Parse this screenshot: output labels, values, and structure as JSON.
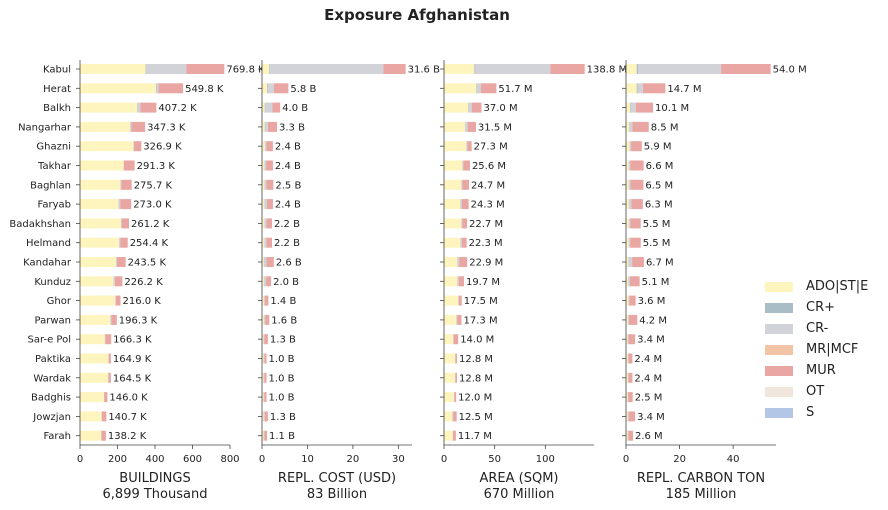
{
  "title": "Exposure Afghanistan",
  "legend": [
    {
      "label": "ADO|ST|E",
      "color": "#fdf5bd"
    },
    {
      "label": "CR+",
      "color": "#a9bdc6"
    },
    {
      "label": "CR-",
      "color": "#d1d3d8"
    },
    {
      "label": "MR|MCF",
      "color": "#f2c3a5"
    },
    {
      "label": "MUR",
      "color": "#e9a6a2"
    },
    {
      "label": "OT",
      "color": "#f1e6db"
    },
    {
      "label": "S",
      "color": "#b3c6e6"
    }
  ],
  "chart_data": {
    "type": "bar",
    "orientation": "horizontal",
    "stacked": true,
    "categories": [
      "Kabul",
      "Herat",
      "Balkh",
      "Nangarhar",
      "Ghazni",
      "Takhar",
      "Baghlan",
      "Faryab",
      "Badakhshan",
      "Helmand",
      "Kandahar",
      "Kunduz",
      "Ghor",
      "Parwan",
      "Sar-e Pol",
      "Paktika",
      "Wardak",
      "Badghis",
      "Jowzjan",
      "Farah"
    ],
    "panels": [
      {
        "xlabel": "BUILDINGS",
        "subtitle": "6,899 Thousand",
        "xlim": [
          0,
          800
        ],
        "xticks": [
          0,
          200,
          400,
          600,
          800
        ],
        "series": [
          {
            "name": "ADO|ST|E",
            "values": [
              350,
              405,
              305,
              268,
              285,
              232,
              215,
              205,
              218,
              208,
              192,
              178,
              188,
              162,
              132,
              152,
              150,
              128,
              115,
              112
            ]
          },
          {
            "name": "CR+",
            "values": [
              2,
              2,
              2,
              1,
              0,
              0,
              0,
              0,
              0,
              0,
              0,
              0,
              0,
              0,
              0,
              0,
              0,
              0,
              0,
              0
            ]
          },
          {
            "name": "CR-",
            "values": [
              215,
              12,
              15,
              5,
              3,
              3,
              5,
              10,
              4,
              8,
              5,
              8,
              3,
              5,
              3,
              2,
              2,
              2,
              2,
              3
            ]
          },
          {
            "name": "MR|MCF",
            "values": [
              0,
              0,
              0,
              0,
              0,
              0,
              0,
              0,
              0,
              0,
              0,
              0,
              0,
              0,
              0,
              0,
              0,
              0,
              0,
              0
            ]
          },
          {
            "name": "MUR",
            "values": [
              202.8,
              130.8,
              85.2,
              73.3,
              38.9,
              56.3,
              55.7,
              58.0,
              39.2,
              38.4,
              46.5,
              40.2,
              25.0,
              29.3,
              31.3,
              10.9,
              12.5,
              16.0,
              23.7,
              23.2
            ]
          }
        ],
        "labels": [
          "769.8 K",
          "549.8 K",
          "407.2 K",
          "347.3 K",
          "326.9 K",
          "291.3 K",
          "275.7 K",
          "273.0 K",
          "261.2 K",
          "254.4 K",
          "243.5 K",
          "226.2 K",
          "216.0 K",
          "196.3 K",
          "166.3 K",
          "164.9 K",
          "164.5 K",
          "146.0 K",
          "140.7 K",
          "138.2 K"
        ],
        "totals": [
          769.8,
          549.8,
          407.2,
          347.3,
          326.9,
          291.3,
          275.7,
          273.0,
          261.2,
          254.4,
          243.5,
          226.2,
          216.0,
          196.3,
          166.3,
          164.9,
          164.5,
          146.0,
          140.7,
          138.2
        ]
      },
      {
        "xlabel": "REPL. COST (USD)",
        "subtitle": "83 Billion",
        "xlim": [
          0,
          33
        ],
        "xticks": [
          0,
          10,
          20,
          30
        ],
        "series": [
          {
            "name": "ADO|ST|E",
            "values": [
              1.6,
              1.1,
              0.6,
              0.6,
              0.6,
              0.5,
              0.5,
              0.5,
              0.5,
              0.5,
              0.4,
              0.4,
              0.4,
              0.4,
              0.3,
              0.3,
              0.3,
              0.3,
              0.3,
              0.3
            ]
          },
          {
            "name": "CR+",
            "values": [
              0.2,
              0.1,
              0.1,
              0.1,
              0,
              0,
              0,
              0,
              0,
              0,
              0,
              0,
              0,
              0,
              0,
              0,
              0,
              0,
              0,
              0
            ]
          },
          {
            "name": "CR-",
            "values": [
              24.9,
              1.4,
              1.6,
              0.6,
              0.4,
              0.4,
              0.5,
              0.6,
              0.5,
              0.5,
              0.6,
              0.5,
              0.2,
              0.3,
              0.2,
              0.2,
              0.2,
              0.2,
              0.3,
              0.2
            ]
          },
          {
            "name": "MR|MCF",
            "values": [
              0,
              0,
              0,
              0,
              0,
              0,
              0,
              0,
              0,
              0,
              0,
              0,
              0,
              0,
              0,
              0,
              0,
              0,
              0,
              0
            ]
          },
          {
            "name": "MUR",
            "values": [
              4.9,
              3.2,
              1.7,
              2.0,
              1.4,
              1.5,
              1.5,
              1.3,
              1.2,
              1.2,
              1.6,
              1.1,
              0.8,
              0.9,
              0.8,
              0.5,
              0.5,
              0.5,
              0.7,
              0.6
            ]
          }
        ],
        "labels": [
          "31.6 B",
          "5.8 B",
          "4.0 B",
          "3.3 B",
          "2.4 B",
          "2.4 B",
          "2.5 B",
          "2.4 B",
          "2.2 B",
          "2.2 B",
          "2.6 B",
          "2.0 B",
          "1.4 B",
          "1.6 B",
          "1.3 B",
          "1.0 B",
          "1.0 B",
          "1.0 B",
          "1.3 B",
          "1.1 B"
        ],
        "totals": [
          31.6,
          5.8,
          4.0,
          3.3,
          2.4,
          2.4,
          2.5,
          2.4,
          2.2,
          2.2,
          2.6,
          2.0,
          1.4,
          1.6,
          1.3,
          1.0,
          1.0,
          1.0,
          1.3,
          1.1
        ]
      },
      {
        "xlabel": "AREA (SQM)",
        "subtitle": "670 Million",
        "xlim": [
          0,
          148
        ],
        "xticks": [
          0,
          50,
          100
        ],
        "series": [
          {
            "name": "ADO|ST|E",
            "values": [
              30,
              32,
              24,
              21,
              22,
              18,
              17,
              16,
              17,
              16,
              13,
              13,
              14,
              12,
              9,
              11,
              11,
              10,
              8,
              8.5
            ]
          },
          {
            "name": "CR+",
            "values": [
              1,
              0.5,
              0.5,
              0.3,
              0,
              0,
              0,
              0,
              0,
              0,
              0,
              0,
              0,
              0,
              0,
              0,
              0,
              0,
              0,
              0
            ]
          },
          {
            "name": "CR-",
            "values": [
              74,
              4,
              3,
              2,
              1,
              1,
              1,
              1.5,
              1,
              1.5,
              2,
              1.5,
              0.5,
              1,
              0.5,
              0.3,
              0.3,
              0.3,
              1,
              0.5
            ]
          },
          {
            "name": "MR|MCF",
            "values": [
              0,
              0,
              0,
              0,
              0,
              0,
              0,
              0,
              0,
              0,
              0,
              0,
              0,
              0,
              0,
              0,
              0,
              0,
              0,
              0
            ]
          },
          {
            "name": "MUR",
            "values": [
              33.8,
              15.2,
              9.5,
              8.2,
              4.3,
              6.6,
              6.7,
              6.8,
              4.7,
              4.8,
              7.9,
              5.2,
              3.0,
              4.3,
              4.5,
              1.5,
              1.5,
              1.7,
              3.5,
              2.7
            ]
          }
        ],
        "labels": [
          "138.8 M",
          "51.7 M",
          "37.0 M",
          "31.5 M",
          "27.3 M",
          "25.6 M",
          "24.7 M",
          "24.3 M",
          "22.7 M",
          "22.3 M",
          "22.9 M",
          "19.7 M",
          "17.5 M",
          "17.3 M",
          "14.0 M",
          "12.8 M",
          "12.8 M",
          "12.0 M",
          "12.5 M",
          "11.7 M"
        ],
        "totals": [
          138.8,
          51.7,
          37.0,
          31.5,
          27.3,
          25.6,
          24.7,
          24.3,
          22.7,
          22.3,
          22.9,
          19.7,
          17.5,
          17.3,
          14.0,
          12.8,
          12.8,
          12.0,
          12.5,
          11.7
        ]
      },
      {
        "xlabel": "REPL. CARBON TON",
        "subtitle": "185 Million",
        "xlim": [
          0,
          56
        ],
        "xticks": [
          0,
          20,
          40
        ],
        "series": [
          {
            "name": "ADO|ST|E",
            "values": [
              4,
              4,
              1.5,
              1.2,
              1.3,
              1.0,
              1.0,
              1.0,
              1.0,
              1.0,
              0.8,
              0.8,
              0.9,
              0.7,
              0.6,
              0.7,
              0.7,
              0.6,
              0.6,
              0.6
            ]
          },
          {
            "name": "CR+",
            "values": [
              0.5,
              0.3,
              0.2,
              0.2,
              0,
              0,
              0,
              0,
              0,
              0,
              0,
              0,
              0,
              0,
              0,
              0,
              0,
              0,
              0,
              0
            ]
          },
          {
            "name": "CR-",
            "values": [
              31,
              2,
              2,
              1,
              0.6,
              0.6,
              0.7,
              1.0,
              0.6,
              0.6,
              1.5,
              0.7,
              0.3,
              0.4,
              0.3,
              0.2,
              0.2,
              0.2,
              0.4,
              0.3
            ]
          },
          {
            "name": "MR|MCF",
            "values": [
              0,
              0,
              0,
              0,
              0,
              0,
              0,
              0,
              0,
              0,
              0,
              0,
              0,
              0,
              0,
              0,
              0,
              0,
              0,
              0
            ]
          },
          {
            "name": "MUR",
            "values": [
              18.5,
              8.4,
              6.4,
              6.1,
              4.0,
              5.0,
              4.8,
              4.3,
              3.9,
              3.9,
              4.4,
              3.6,
              2.4,
              3.1,
              2.5,
              1.5,
              1.5,
              1.7,
              2.4,
              1.7
            ]
          }
        ],
        "labels": [
          "54.0 M",
          "14.7 M",
          "10.1 M",
          "8.5 M",
          "5.9 M",
          "6.6 M",
          "6.5 M",
          "6.3 M",
          "5.5 M",
          "5.5 M",
          "6.7 M",
          "5.1 M",
          "3.6 M",
          "4.2 M",
          "3.4 M",
          "2.4 M",
          "2.4 M",
          "2.5 M",
          "3.4 M",
          "2.6 M"
        ],
        "totals": [
          54.0,
          14.7,
          10.1,
          8.5,
          5.9,
          6.6,
          6.5,
          6.3,
          5.5,
          5.5,
          6.7,
          5.1,
          3.6,
          4.2,
          3.4,
          2.4,
          2.4,
          2.5,
          3.4,
          2.6
        ]
      }
    ]
  }
}
